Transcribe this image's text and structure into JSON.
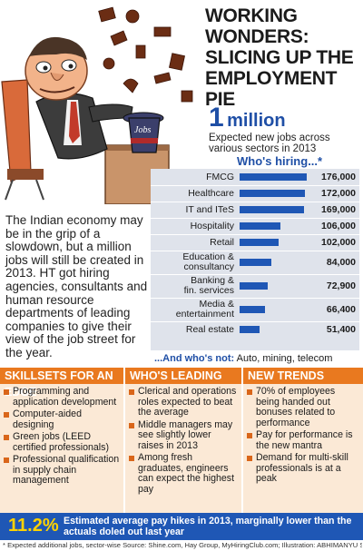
{
  "headline": [
    "WORKING WONDERS:",
    "SLICING UP THE",
    "EMPLOYMENT PIE"
  ],
  "summary": {
    "number": "1",
    "unit": "million",
    "caption": "Expected new jobs across various sectors in 2013"
  },
  "illustration": {
    "hat_text": "Jobs"
  },
  "intro": "The Indian economy may be in the grip of a slowdown, but a million jobs will still be created in 2013. HT got hiring agencies, consultants and human resource departments of leading companies to give their view of the job street for the year.",
  "chart_data": {
    "type": "bar",
    "orientation": "horizontal",
    "title": "Who's hiring...*",
    "categories": [
      "FMCG",
      "Healthcare",
      "IT and ITeS",
      "Hospitality",
      "Retail",
      "Education & consultancy",
      "Banking & fin. services",
      "Media & entertainment",
      "Real estate"
    ],
    "category_lines": [
      [
        "FMCG"
      ],
      [
        "Healthcare"
      ],
      [
        "IT and ITeS"
      ],
      [
        "Hospitality"
      ],
      [
        "Retail"
      ],
      [
        "Education &",
        "consultancy"
      ],
      [
        "Banking &",
        "fin. services"
      ],
      [
        "Media &",
        "entertainment"
      ],
      [
        "Real estate"
      ]
    ],
    "values": [
      176000,
      172000,
      169000,
      106000,
      102000,
      84000,
      72900,
      66400,
      51400
    ],
    "value_labels": [
      "176,000",
      "172,000",
      "169,000",
      "106,000",
      "102,000",
      "84,000",
      "72,900",
      "66,400",
      "51,400"
    ],
    "xlim": [
      0,
      176000
    ],
    "colors": {
      "bar": "#1f57b5",
      "background": "#dfe3eb"
    }
  },
  "whos_not": {
    "lead": "...And who's not:",
    "text": "Auto, mining, telecom"
  },
  "columns": [
    {
      "title": "SKILLSETS FOR AN EDGE",
      "items": [
        "Programming and application development",
        "Computer-aided designing",
        "Green jobs (LEED certified professionals)",
        "Professional qualification in supply chain management"
      ]
    },
    {
      "title": "WHO'S LEADING",
      "items": [
        "Clerical and operations roles expected to beat the average",
        "Middle managers may see slightly lower raises in 2013",
        "Among fresh graduates, engineers can expect the highest pay"
      ]
    },
    {
      "title": "NEW TRENDS",
      "items": [
        "70% of employees being handed out bonuses related to performance",
        "Pay for performance is the new mantra",
        "Demand for multi-skill professionals is at a peak"
      ]
    }
  ],
  "footer": {
    "pct": "11.2%",
    "text": "Estimated average pay hikes in 2013, marginally lower than the actuals doled out last year"
  },
  "source_line": "* Expected additional jobs, sector-wise    Source: Shine.com, Hay Group, MyHiringClub.com; Illustration: ABHIMANYU SINHA",
  "colors": {
    "accent_blue": "#1f4fa6",
    "orange": "#e9791f",
    "cream": "#fbe9d6",
    "yellow": "#ffd200"
  }
}
